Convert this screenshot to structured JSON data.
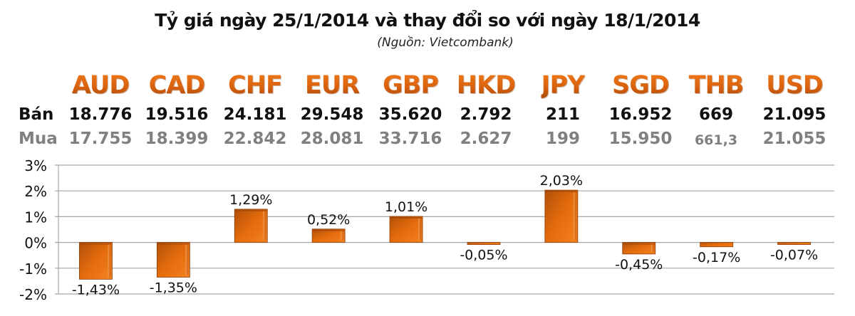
{
  "header": {
    "title": "Tỷ giá ngày 25/1/2014 và thay đổi so với ngày 18/1/2014",
    "source": "(Nguồn: Vietcombank)"
  },
  "rates": {
    "sell_label": "Bán",
    "buy_label": "Mua",
    "currencies": [
      {
        "code": "AUD",
        "sell": "18.776",
        "buy": "17.755"
      },
      {
        "code": "CAD",
        "sell": "19.516",
        "buy": "18.399"
      },
      {
        "code": "CHF",
        "sell": "24.181",
        "buy": "22.842"
      },
      {
        "code": "EUR",
        "sell": "29.548",
        "buy": "28.081"
      },
      {
        "code": "GBP",
        "sell": "35.620",
        "buy": "33.716"
      },
      {
        "code": "HKD",
        "sell": "2.792",
        "buy": "2.627"
      },
      {
        "code": "JPY",
        "sell": "211",
        "buy": "199"
      },
      {
        "code": "SGD",
        "sell": "16.952",
        "buy": "15.950"
      },
      {
        "code": "THB",
        "sell": "669",
        "buy": "661,3"
      },
      {
        "code": "USD",
        "sell": "21.095",
        "buy": "21.055"
      }
    ]
  },
  "chart_data": {
    "type": "bar",
    "title": "Tỷ giá ngày 25/1/2014 và thay đổi so với ngày 18/1/2014",
    "subtitle": "(Nguồn: Vietcombank)",
    "xlabel": "",
    "ylabel": "",
    "categories": [
      "AUD",
      "CAD",
      "CHF",
      "EUR",
      "GBP",
      "HKD",
      "JPY",
      "SGD",
      "THB",
      "USD"
    ],
    "values": [
      -1.43,
      -1.35,
      1.29,
      0.52,
      1.01,
      -0.05,
      2.03,
      -0.45,
      -0.17,
      -0.07
    ],
    "data_labels": [
      "-1,43%",
      "-1,35%",
      "1,29%",
      "0,52%",
      "1,01%",
      "-0,05%",
      "2,03%",
      "-0,45%",
      "-0,17%",
      "-0,07%"
    ],
    "ylim": [
      -2,
      3
    ],
    "yticks": [
      3,
      2,
      1,
      0,
      -1,
      -2
    ],
    "ytick_labels": [
      "3%",
      "2%",
      "1%",
      "0%",
      "-1%",
      "-2%"
    ],
    "grid": true,
    "legend": "none",
    "bar_color": "#e36c0a"
  }
}
